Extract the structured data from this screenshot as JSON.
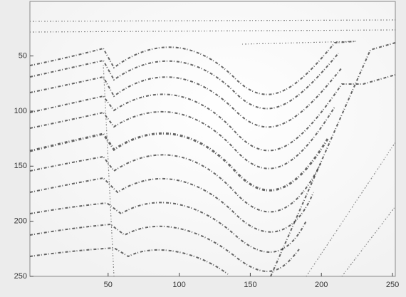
{
  "chart_data": {
    "type": "image",
    "xlim": [
      -5,
      252
    ],
    "ylim": [
      0.5,
      250
    ],
    "y_reversed": true,
    "xticks": [
      50,
      100,
      150,
      200,
      250
    ],
    "yticks": [
      50,
      100,
      150,
      200,
      250
    ]
  }
}
